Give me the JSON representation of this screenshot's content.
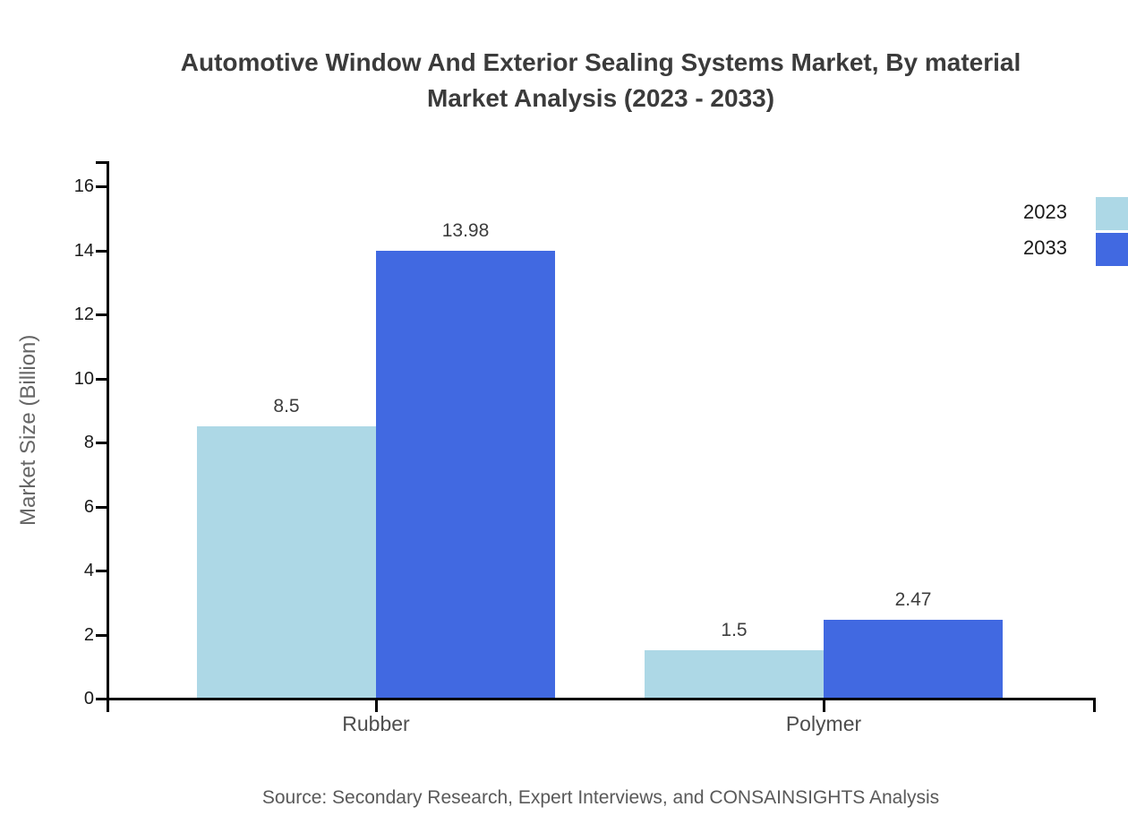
{
  "title": {
    "line1": "Automotive Window And Exterior Sealing Systems Market, By material",
    "line2": "Market Analysis (2023 - 2033)"
  },
  "legend": [
    {
      "label": "2023",
      "color": "#ADD8E6"
    },
    {
      "label": "2033",
      "color": "#4169E1"
    }
  ],
  "source": "Source: Secondary Research, Expert Interviews, and CONSAINSIGHTS Analysis",
  "chart_data": {
    "type": "bar",
    "title": "Automotive Window And Exterior Sealing Systems Market, By material Market Analysis (2023 - 2033)",
    "categories": [
      "Rubber",
      "Polymer"
    ],
    "series": [
      {
        "name": "2023",
        "color": "#ADD8E6",
        "values": [
          8.5,
          1.5
        ]
      },
      {
        "name": "2033",
        "color": "#4169E1",
        "values": [
          13.98,
          2.47
        ]
      }
    ],
    "xlabel": "",
    "ylabel": "Market Size (Billion)",
    "ylim": [
      0,
      16
    ],
    "yticks": [
      0,
      2,
      4,
      6,
      8,
      10,
      12,
      14,
      16
    ],
    "grid": false,
    "legend_position": "top-right",
    "value_labels_shown": true
  }
}
